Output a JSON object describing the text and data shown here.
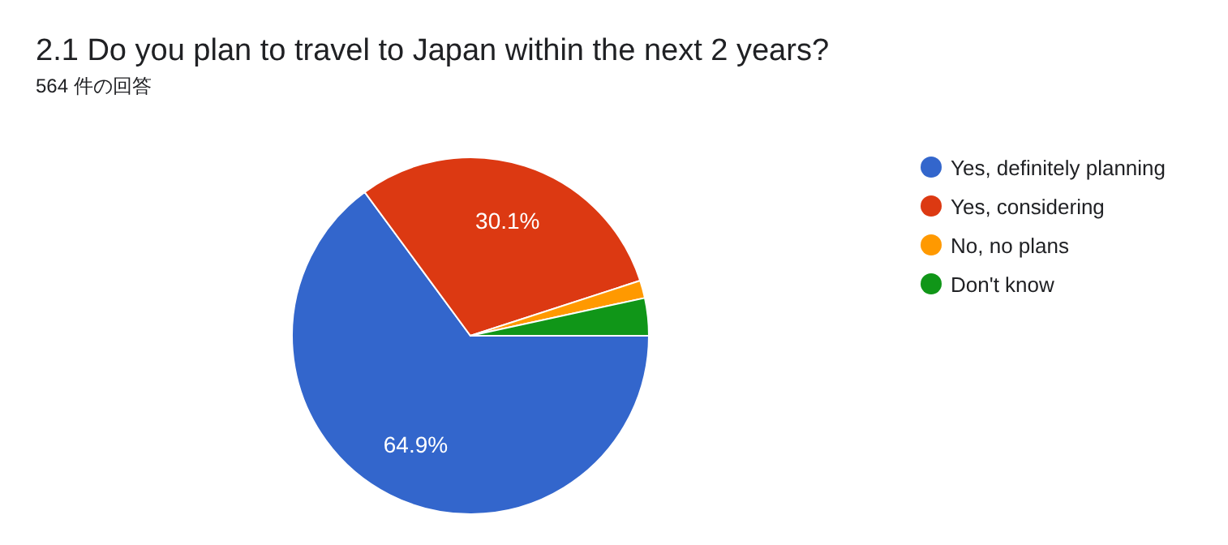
{
  "chart_data": {
    "type": "pie",
    "title": "2.1 Do you plan to travel to Japan within the next 2 years?",
    "subtitle": "564 件の回答",
    "categories": [
      "Yes, definitely planning",
      "Yes, considering",
      "No, no plans",
      "Don't know"
    ],
    "values": [
      64.9,
      30.1,
      1.6,
      3.4
    ],
    "colors": [
      "#3366cc",
      "#dc3912",
      "#ff9900",
      "#109618"
    ],
    "value_labels": [
      "64.9%",
      "30.1%",
      null,
      null
    ],
    "legend": "right"
  }
}
